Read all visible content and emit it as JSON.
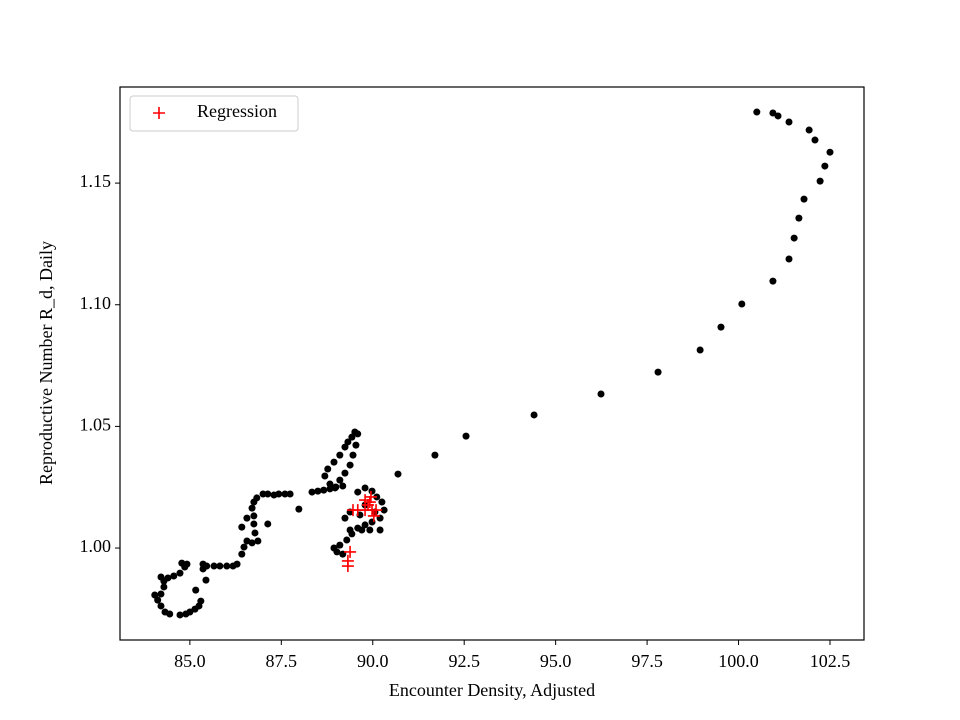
{
  "chart_data": {
    "type": "scatter",
    "xlabel": "Encounter Density, Adjusted",
    "ylabel": "Reproductive Number R_d, Daily",
    "xlim": [
      83.09,
      103.43
    ],
    "ylim": [
      0.9622,
      1.1895
    ],
    "xticks": [
      {
        "value": 85,
        "label": "85.0"
      },
      87.5,
      {
        "value": 90,
        "label": "90.0"
      },
      92.5,
      {
        "value": 95,
        "label": "95.0"
      },
      97.5,
      {
        "value": 100,
        "label": "100.0"
      },
      102.5
    ],
    "yticks": [
      {
        "value": 1,
        "label": "1.00"
      },
      1.05,
      {
        "value": 1.1,
        "label": "1.10"
      },
      1.15
    ],
    "grid": false,
    "legend": "upper left",
    "series": [
      {
        "color": "#000000",
        "marker": "circle",
        "x": [
          100.5,
          100.94,
          101.08,
          101.38,
          101.93,
          102.09,
          102.5,
          102.36,
          102.23,
          101.79,
          101.65,
          101.52,
          101.38,
          100.94,
          100.09,
          99.52,
          98.95,
          97.8,
          96.24,
          94.41,
          92.55,
          91.7,
          90.69,
          89.51,
          89.43,
          89.32,
          89.24,
          89.1,
          88.94,
          88.77,
          88.69,
          88.83,
          88.97,
          89.1,
          89.24,
          89.38,
          89.46,
          89.54,
          89.59,
          88.34,
          88.5,
          88.66,
          88.83,
          88.99,
          89.18,
          87.98,
          87.74,
          87.6,
          87.43,
          87.3,
          87.13,
          87.0,
          86.83,
          86.75,
          86.7,
          86.75,
          86.75,
          86.78,
          86.86,
          86.7,
          86.56,
          86.48,
          86.42,
          86.29,
          86.18,
          86.01,
          85.82,
          85.66,
          85.46,
          85.44,
          85.36,
          85.36,
          85.16,
          85.3,
          85.25,
          85.14,
          85.0,
          84.89,
          84.73,
          84.45,
          84.32,
          84.21,
          84.12,
          84.21,
          84.29,
          84.29,
          84.21,
          84.04,
          84.4,
          84.56,
          84.73,
          84.86,
          84.78,
          84.92,
          86.42,
          86.56,
          87.13,
          89.59,
          89.79,
          89.98,
          90.11,
          90.25,
          90.31,
          90.2,
          89.98,
          89.79,
          89.59,
          89.43,
          89.29,
          89.1,
          88.94,
          89.02,
          89.18,
          89.38,
          89.7,
          89.92,
          90.2,
          89.24,
          89.38,
          89.79,
          90.06,
          89.65
        ],
        "y": [
          1.1792,
          1.1788,
          1.1776,
          1.1751,
          1.1718,
          1.1677,
          1.1627,
          1.157,
          1.1508,
          1.1434,
          1.1356,
          1.1274,
          1.1188,
          1.1097,
          1.1003,
          1.0908,
          1.0814,
          1.0723,
          1.0633,
          1.0547,
          1.046,
          1.0382,
          1.0304,
          1.0477,
          1.0456,
          1.0436,
          1.0415,
          1.0382,
          1.0353,
          1.0325,
          1.0296,
          1.0263,
          1.0247,
          1.0279,
          1.0308,
          1.0341,
          1.0382,
          1.0423,
          1.0469,
          1.023,
          1.0234,
          1.0238,
          1.0243,
          1.0251,
          1.0255,
          1.016,
          1.0222,
          1.0222,
          1.0222,
          1.0218,
          1.0222,
          1.0222,
          1.0206,
          1.0189,
          1.0164,
          1.0132,
          1.0099,
          1.0062,
          1.0029,
          1.0021,
          1.0029,
          1.0004,
          0.9975,
          0.9934,
          0.9926,
          0.9926,
          0.9926,
          0.9926,
          0.9926,
          0.9868,
          0.9914,
          0.9934,
          0.9827,
          0.9782,
          0.9762,
          0.9749,
          0.9737,
          0.9729,
          0.9725,
          0.9729,
          0.9737,
          0.9762,
          0.9786,
          0.9811,
          0.984,
          0.9864,
          0.9881,
          0.9807,
          0.9877,
          0.9885,
          0.9897,
          0.9922,
          0.9938,
          0.9934,
          1.0086,
          1.0123,
          1.0099,
          1.023,
          1.0247,
          1.0234,
          1.021,
          1.0189,
          1.0156,
          1.0123,
          1.0107,
          1.0095,
          1.0082,
          1.0058,
          1.0033,
          1.0012,
          1.0,
          0.9984,
          0.9975,
          1.0074,
          1.0074,
          1.0074,
          1.0074,
          1.0123,
          1.0148,
          1.0177,
          1.0148,
          1.0136
        ]
      },
      {
        "name": "Regression",
        "color": "#ff0000",
        "marker": "plus",
        "x": [
          89.32,
          89.32,
          89.38,
          89.46,
          89.59,
          89.79,
          89.87,
          89.92,
          89.98,
          90.03,
          90.09,
          89.79,
          89.95
        ],
        "y": [
          0.9926,
          0.9947,
          0.9984,
          1.0156,
          1.0156,
          1.0156,
          1.0177,
          1.0189,
          1.0156,
          1.0132,
          1.0156,
          1.0197,
          1.021
        ]
      }
    ]
  }
}
